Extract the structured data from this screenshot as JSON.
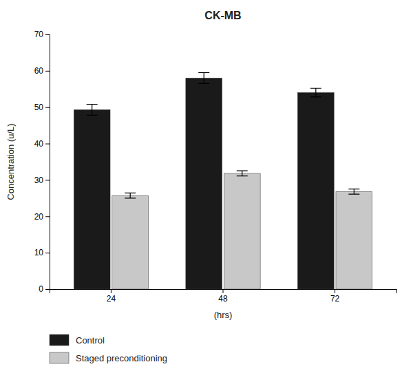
{
  "chart_data": {
    "type": "bar",
    "title": "CK-MB",
    "xlabel": "(hrs)",
    "ylabel": "Concentration (u/L)",
    "categories": [
      "24",
      "48",
      "72"
    ],
    "series": [
      {
        "name": "Control",
        "color": "#1a1a1a",
        "values": [
          49.3,
          58.0,
          54.0
        ],
        "errors": [
          1.5,
          1.5,
          1.2
        ]
      },
      {
        "name": "Staged preconditioning",
        "color": "#c8c8c8",
        "values": [
          25.7,
          31.8,
          26.8
        ],
        "errors": [
          0.7,
          0.7,
          0.7
        ]
      }
    ],
    "ylim": [
      0,
      70
    ],
    "yticks": [
      0,
      10,
      20,
      30,
      40,
      50,
      60,
      70
    ],
    "grid": false,
    "legend": "bottom"
  }
}
